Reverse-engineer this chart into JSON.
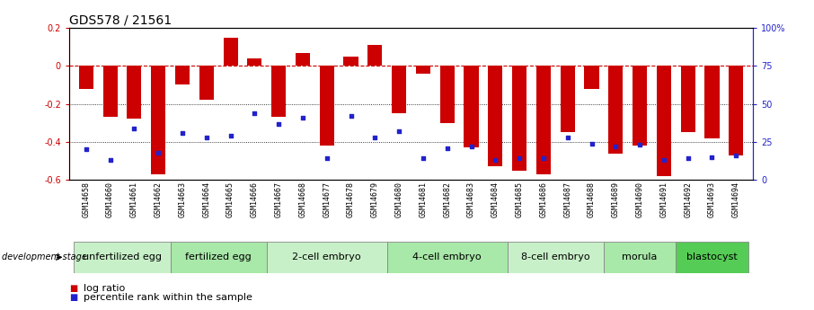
{
  "title": "GDS578 / 21561",
  "samples": [
    "GSM14658",
    "GSM14660",
    "GSM14661",
    "GSM14662",
    "GSM14663",
    "GSM14664",
    "GSM14665",
    "GSM14666",
    "GSM14667",
    "GSM14668",
    "GSM14677",
    "GSM14678",
    "GSM14679",
    "GSM14680",
    "GSM14681",
    "GSM14682",
    "GSM14683",
    "GSM14684",
    "GSM14685",
    "GSM14686",
    "GSM14687",
    "GSM14688",
    "GSM14689",
    "GSM14690",
    "GSM14691",
    "GSM14692",
    "GSM14693",
    "GSM14694"
  ],
  "log_ratio": [
    -0.12,
    -0.27,
    -0.28,
    -0.57,
    -0.1,
    -0.18,
    0.15,
    0.04,
    -0.27,
    0.07,
    -0.42,
    0.05,
    0.11,
    -0.25,
    -0.04,
    -0.3,
    -0.43,
    -0.53,
    -0.55,
    -0.57,
    -0.35,
    -0.12,
    -0.46,
    -0.42,
    -0.58,
    -0.35,
    -0.38,
    -0.47
  ],
  "percentile_rank": [
    20,
    13,
    34,
    18,
    31,
    28,
    29,
    44,
    37,
    41,
    14,
    42,
    28,
    32,
    14,
    21,
    22,
    13,
    14,
    14,
    28,
    24,
    22,
    23,
    13,
    14,
    15,
    16
  ],
  "stages": [
    {
      "label": "unfertilized egg",
      "start": 0,
      "end": 4,
      "color": "#c8f0c8"
    },
    {
      "label": "fertilized egg",
      "start": 4,
      "end": 8,
      "color": "#a8e8a8"
    },
    {
      "label": "2-cell embryo",
      "start": 8,
      "end": 13,
      "color": "#c8f0c8"
    },
    {
      "label": "4-cell embryo",
      "start": 13,
      "end": 18,
      "color": "#a8e8a8"
    },
    {
      "label": "8-cell embryo",
      "start": 18,
      "end": 22,
      "color": "#c8f0c8"
    },
    {
      "label": "morula",
      "start": 22,
      "end": 25,
      "color": "#a8e8a8"
    },
    {
      "label": "blastocyst",
      "start": 25,
      "end": 28,
      "color": "#55cc55"
    }
  ],
  "ylim_left": [
    -0.6,
    0.2
  ],
  "ylim_right": [
    0,
    100
  ],
  "bar_color": "#cc0000",
  "dot_color": "#2222cc",
  "hline_color": "#cc0000",
  "background_color": "#ffffff",
  "title_fontsize": 10,
  "tick_fontsize": 7,
  "stage_label_fontsize": 8,
  "legend_fontsize": 8
}
